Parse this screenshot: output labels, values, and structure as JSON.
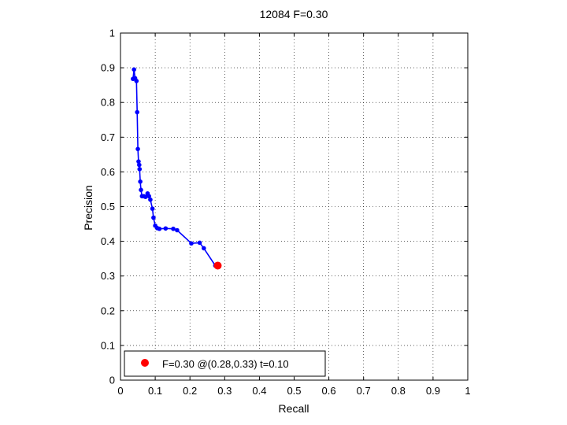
{
  "chart_data": {
    "type": "line",
    "title": "12084 F=0.30",
    "xlabel": "Recall",
    "ylabel": "Precision",
    "xlim": [
      0,
      1
    ],
    "ylim": [
      0,
      1
    ],
    "grid": true,
    "xticks": [
      "0",
      "0.1",
      "0.2",
      "0.3",
      "0.4",
      "0.5",
      "0.6",
      "0.7",
      "0.8",
      "0.9",
      "1"
    ],
    "yticks": [
      "0",
      "0.1",
      "0.2",
      "0.3",
      "0.4",
      "0.5",
      "0.6",
      "0.7",
      "0.8",
      "0.9",
      "1"
    ],
    "legend_position": "bottom-left",
    "series": [
      {
        "color": "#0000ff",
        "x": [
          0.036,
          0.039,
          0.042,
          0.046,
          0.048,
          0.05,
          0.052,
          0.054,
          0.055,
          0.057,
          0.059,
          0.062,
          0.067,
          0.072,
          0.078,
          0.082,
          0.086,
          0.092,
          0.095,
          0.1,
          0.106,
          0.112,
          0.13,
          0.152,
          0.163,
          0.204,
          0.228,
          0.24,
          0.273
        ],
        "y": [
          0.868,
          0.895,
          0.87,
          0.862,
          0.772,
          0.666,
          0.63,
          0.62,
          0.608,
          0.572,
          0.548,
          0.53,
          0.53,
          0.528,
          0.538,
          0.53,
          0.52,
          0.494,
          0.468,
          0.445,
          0.438,
          0.436,
          0.437,
          0.436,
          0.432,
          0.394,
          0.396,
          0.38,
          0.33
        ]
      }
    ],
    "highlight": {
      "x": 0.28,
      "y": 0.33,
      "color": "#ff0000",
      "legend": "F=0.30 @(0.28,0.33) t=0.10"
    }
  }
}
